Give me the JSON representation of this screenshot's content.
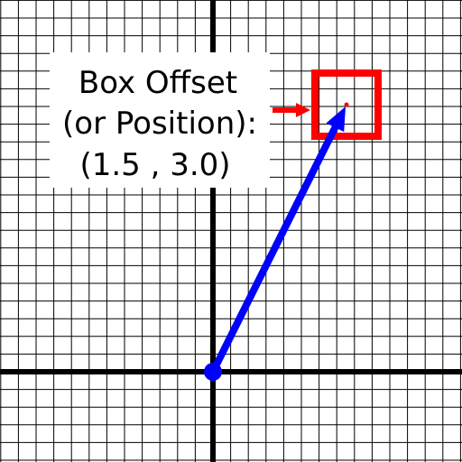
{
  "diagram": {
    "label": {
      "lines": [
        "Box Offset",
        "(or Position):",
        "(1.5 , 3.0)"
      ]
    },
    "vector": {
      "from": [
        0,
        0
      ],
      "to": [
        1.5,
        3.0
      ]
    },
    "grid": {
      "minor_per_unit": 5,
      "x_range": [
        -2.0,
        2.4
      ],
      "y_range": [
        -0.9,
        3.5
      ]
    },
    "colors": {
      "grid": "#000000",
      "axes": "#000000",
      "vector": "#0000ff",
      "box": "#ff0000",
      "pointer": "#ff0000",
      "label_bg": "#ffffff",
      "text": "#000000"
    }
  }
}
